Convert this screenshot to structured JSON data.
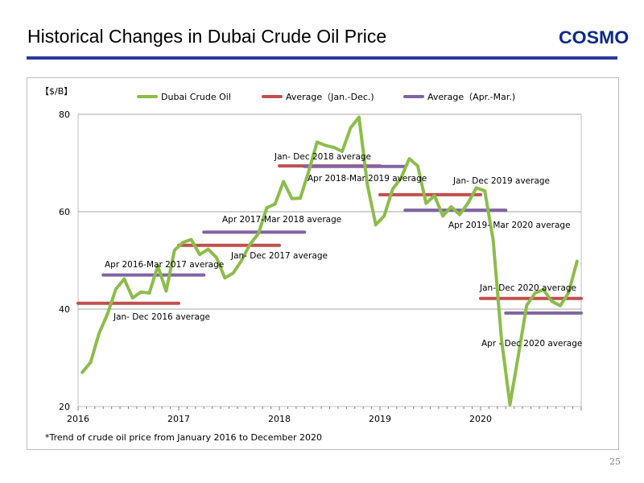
{
  "slide": {
    "title": "Historical Changes in Dubai Crude Oil Price",
    "logo_text": "COSMO",
    "page_number": "25"
  },
  "colors": {
    "title_rule": "#2b3aa0",
    "logo": "#0d2a8a",
    "crude_line": "#8cbd4a",
    "jan_dec_avg": "#c0504d",
    "apr_mar_avg": "#8064a2",
    "gridline": "#a6a6a6"
  },
  "chart_data": {
    "type": "line",
    "ylabel": "【$/B】",
    "ylim": [
      20,
      80
    ],
    "yticks": [
      20,
      40,
      60,
      80
    ],
    "xlim": [
      2016.0,
      2021.0
    ],
    "xticks": [
      2016,
      2017,
      2018,
      2019,
      2020
    ],
    "grid": "horizontal",
    "legend_position": "top",
    "series": [
      {
        "name": "Dubai Crude Oil",
        "x": [
          "2016-01",
          "2016-02",
          "2016-03",
          "2016-04",
          "2016-05",
          "2016-06",
          "2016-07",
          "2016-08",
          "2016-09",
          "2016-10",
          "2016-11",
          "2016-12",
          "2017-01",
          "2017-02",
          "2017-03",
          "2017-04",
          "2017-05",
          "2017-06",
          "2017-07",
          "2017-08",
          "2017-09",
          "2017-10",
          "2017-11",
          "2017-12",
          "2018-01",
          "2018-02",
          "2018-03",
          "2018-04",
          "2018-05",
          "2018-06",
          "2018-07",
          "2018-08",
          "2018-09",
          "2018-10",
          "2018-11",
          "2018-12",
          "2019-01",
          "2019-02",
          "2019-03",
          "2019-04",
          "2019-05",
          "2019-06",
          "2019-07",
          "2019-08",
          "2019-09",
          "2019-10",
          "2019-11",
          "2019-12",
          "2020-01",
          "2020-02",
          "2020-03",
          "2020-04",
          "2020-05",
          "2020-06",
          "2020-07",
          "2020-08",
          "2020-09",
          "2020-10",
          "2020-11",
          "2020-12"
        ],
        "values": [
          27.0,
          29.1,
          35.0,
          39.0,
          44.1,
          46.2,
          42.3,
          43.5,
          43.3,
          48.9,
          43.7,
          52.1,
          53.7,
          54.3,
          51.2,
          52.3,
          50.6,
          46.4,
          47.4,
          50.0,
          53.3,
          55.5,
          60.8,
          61.6,
          66.2,
          62.7,
          62.8,
          68.3,
          74.3,
          73.6,
          73.2,
          72.4,
          77.2,
          79.4,
          65.5,
          57.3,
          59.1,
          64.6,
          66.9,
          70.9,
          69.4,
          61.7,
          63.3,
          59.1,
          61.0,
          59.4,
          61.8,
          64.9,
          64.3,
          54.2,
          33.7,
          20.4,
          30.5,
          40.8,
          43.3,
          44.0,
          41.6,
          40.7,
          43.4,
          49.8
        ]
      },
      {
        "name": "Average（Jan.-Dec.)",
        "segments": [
          {
            "start": "2016-01",
            "end": "2016-12",
            "value": 41.2,
            "label": "Jan- Dec 2016 average"
          },
          {
            "start": "2017-01",
            "end": "2017-12",
            "value": 53.1,
            "label": "Jan- Dec 2017 average"
          },
          {
            "start": "2018-01",
            "end": "2018-12",
            "value": 69.4,
            "label": "Jan- Dec 2018 average"
          },
          {
            "start": "2019-01",
            "end": "2019-12",
            "value": 63.5,
            "label": "Jan- Dec 2019 average"
          },
          {
            "start": "2020-01",
            "end": "2020-12",
            "value": 42.2,
            "label": "Jan- Dec 2020 average"
          }
        ]
      },
      {
        "name": "Average（Apr.-Mar.)",
        "segments": [
          {
            "start": "2016-04",
            "end": "2017-03",
            "value": 47.0,
            "label": "Apr 2016-Mar 2017 average"
          },
          {
            "start": "2017-04",
            "end": "2018-03",
            "value": 55.8,
            "label": "Apr 2017-Mar 2018 average"
          },
          {
            "start": "2018-04",
            "end": "2019-03",
            "value": 69.3,
            "label": "Apr 2018-Mar 2019 average"
          },
          {
            "start": "2019-04",
            "end": "2020-03",
            "value": 60.3,
            "label": "Apr 2019- Mar 2020 average"
          },
          {
            "start": "2020-04",
            "end": "2020-12",
            "value": 39.2,
            "label": "Apr - Dec 2020 average"
          }
        ]
      }
    ],
    "footnote": "*Trend of crude oil price from January 2016 to December 2020"
  }
}
